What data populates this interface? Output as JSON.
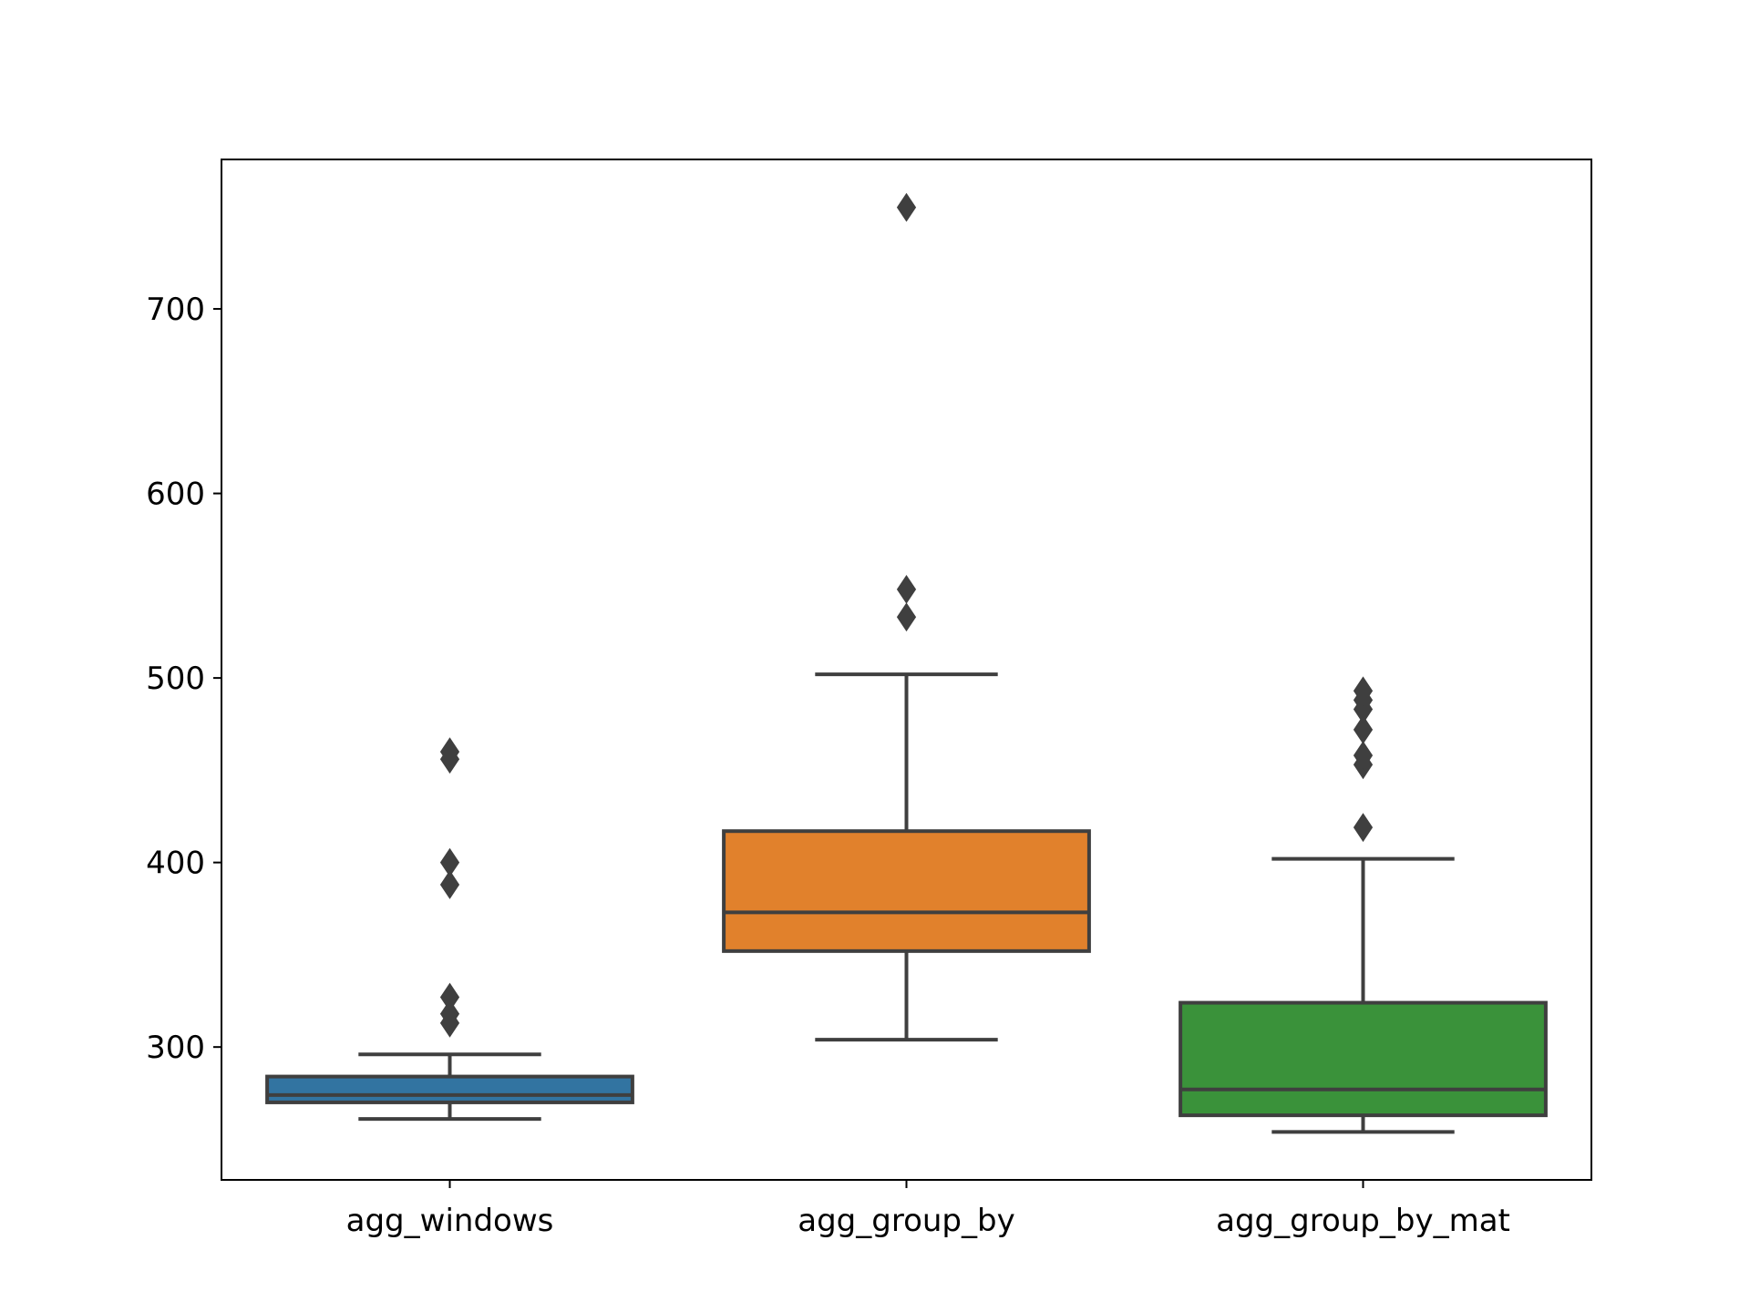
{
  "chart_data": {
    "type": "box",
    "title": "",
    "xlabel": "",
    "ylabel": "",
    "ylim": [
      228,
      781
    ],
    "yticks": [
      300,
      400,
      500,
      600,
      700
    ],
    "grid": false,
    "categories": [
      "agg_windows",
      "agg_group_by",
      "agg_group_by_mat"
    ],
    "series": [
      {
        "category": "agg_windows",
        "color": "#3274a1",
        "whisker_low": 261,
        "q1": 270,
        "median": 274,
        "q3": 284,
        "whisker_high": 296,
        "outliers": [
          313,
          318,
          327,
          388,
          400,
          456,
          460
        ]
      },
      {
        "category": "agg_group_by",
        "color": "#e1812c",
        "whisker_low": 304,
        "q1": 352,
        "median": 373,
        "q3": 417,
        "whisker_high": 502,
        "outliers": [
          533,
          548,
          755
        ]
      },
      {
        "category": "agg_group_by_mat",
        "color": "#3a923a",
        "whisker_low": 254,
        "q1": 263,
        "median": 277,
        "q3": 324,
        "whisker_high": 402,
        "outliers": [
          419,
          453,
          458,
          472,
          483,
          488,
          493
        ]
      }
    ],
    "line_color": "#3f3f3f"
  }
}
